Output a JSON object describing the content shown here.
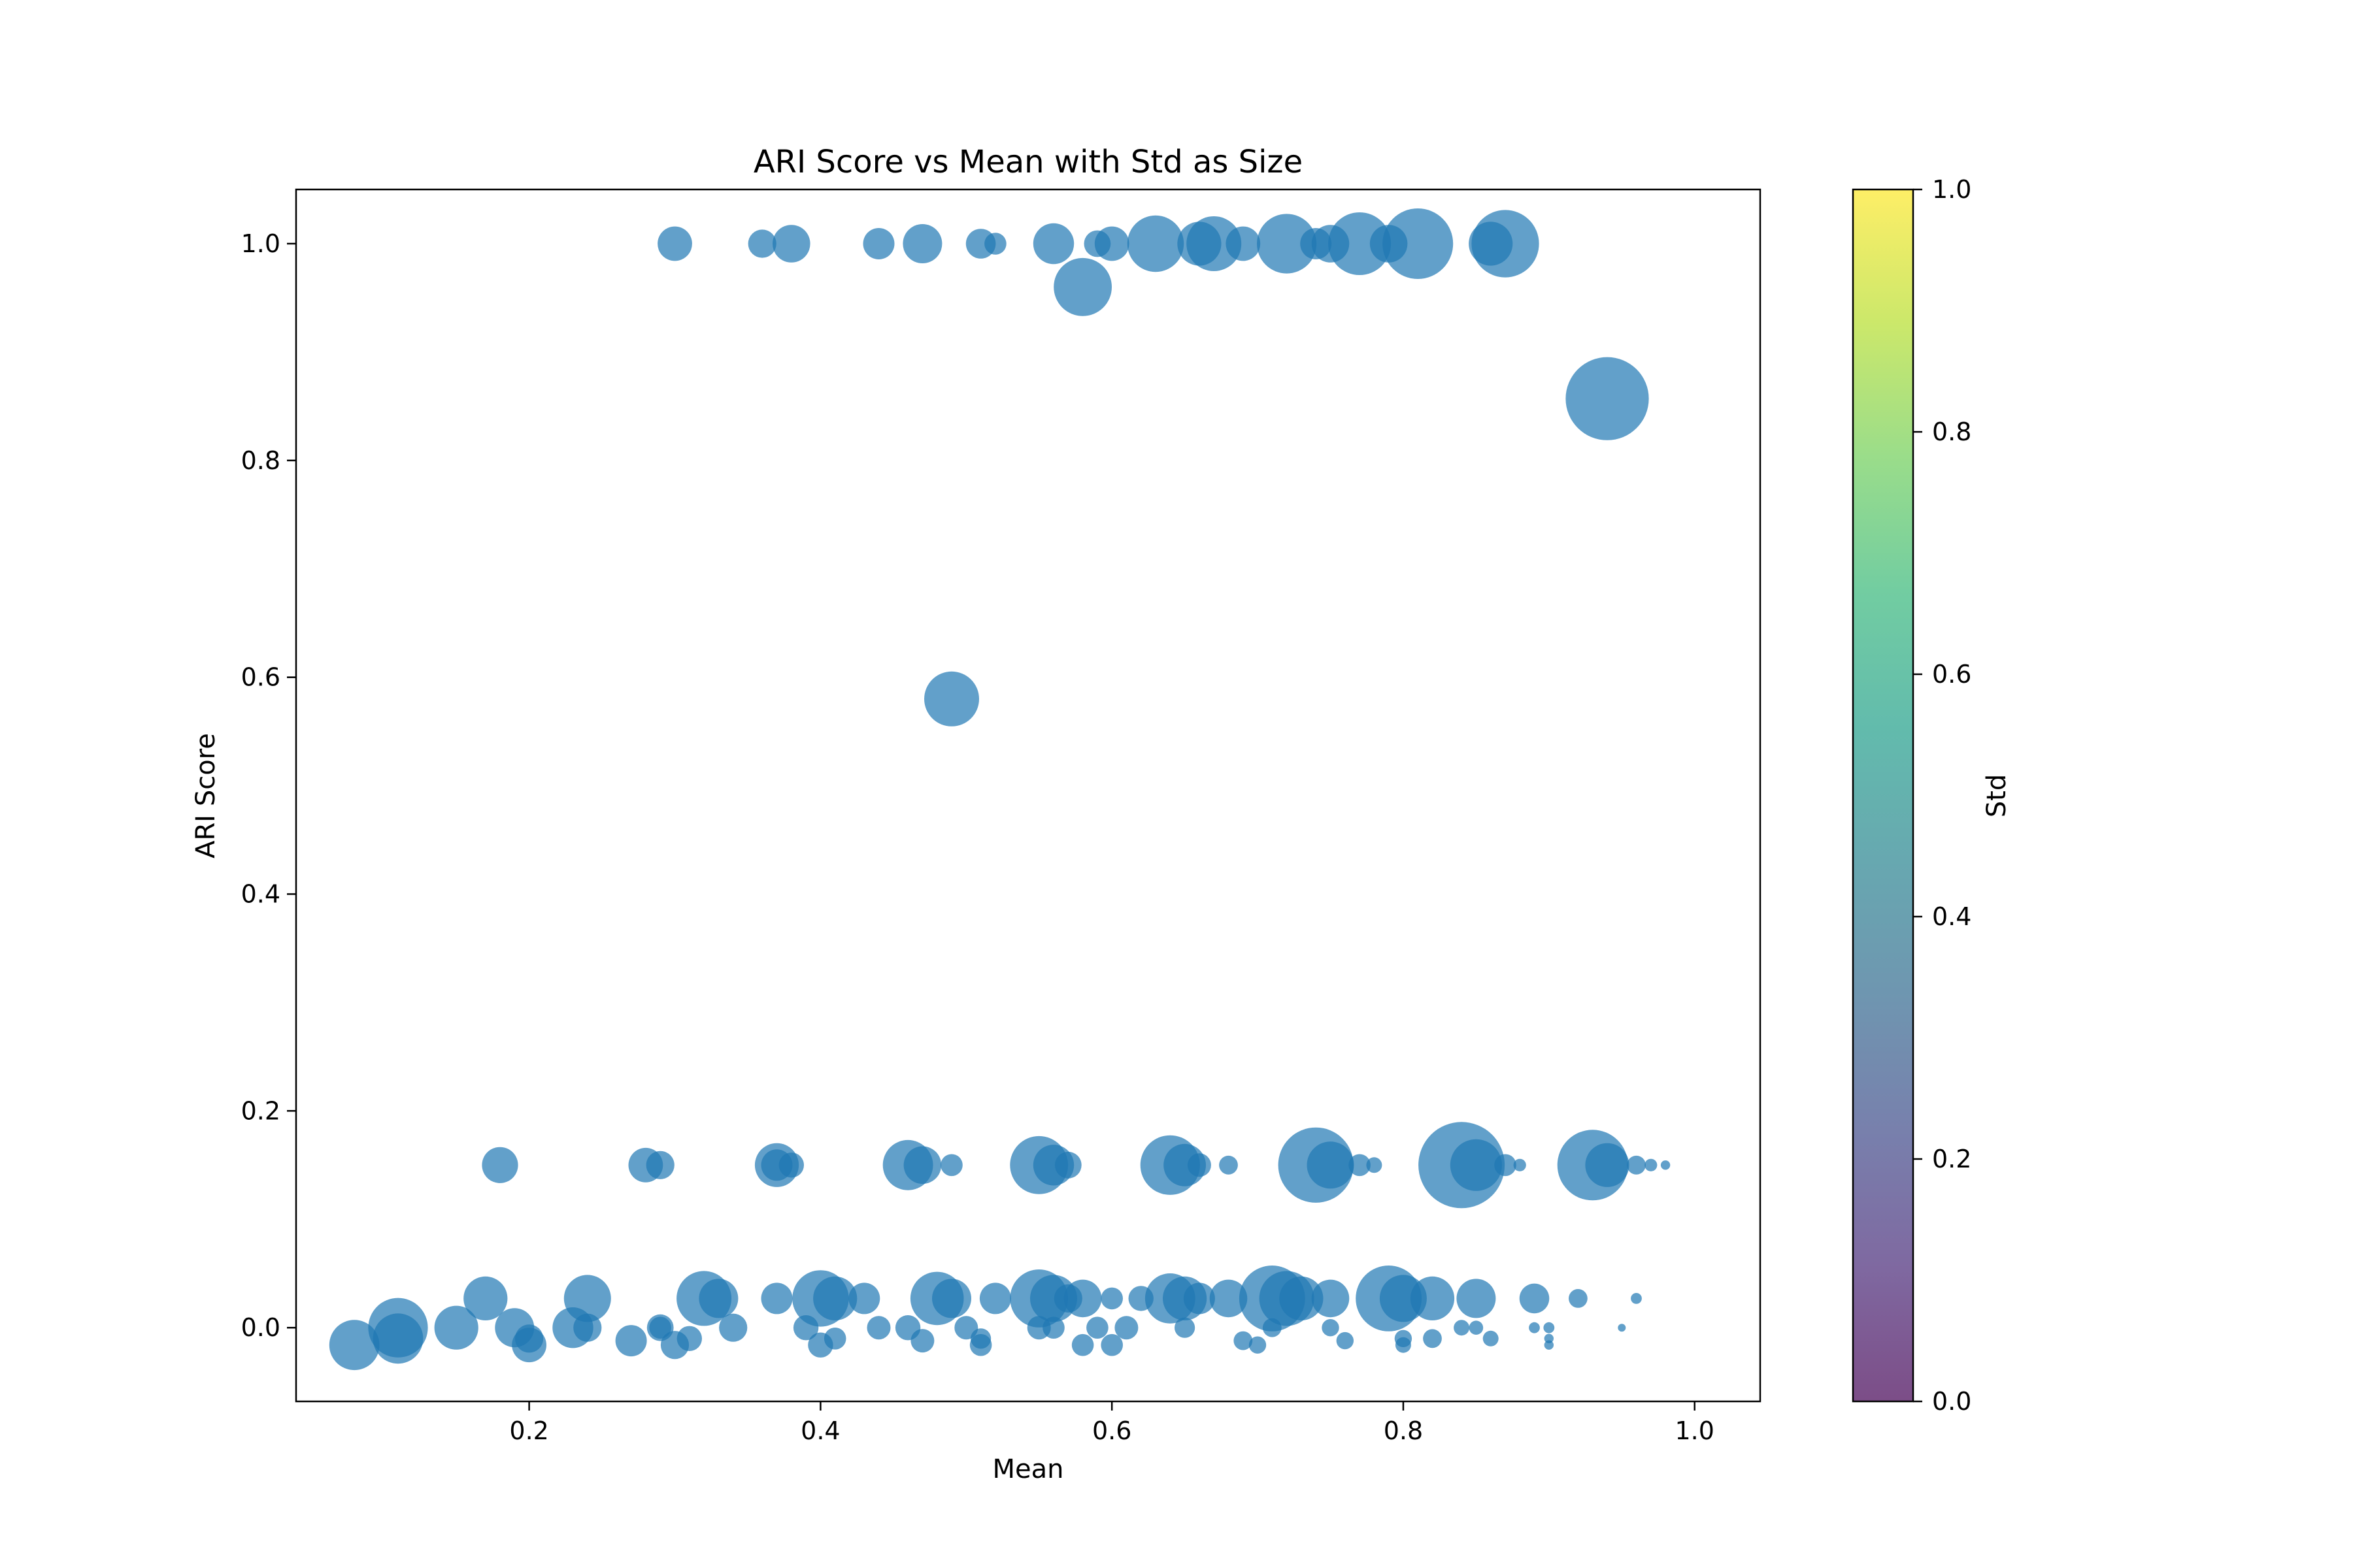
{
  "chart_data": {
    "type": "scatter",
    "title": "ARI Score vs Mean with Std as Size",
    "xlabel": "Mean",
    "ylabel": "ARI Score",
    "xlim": [
      0.04,
      1.045
    ],
    "ylim": [
      -0.068,
      1.05
    ],
    "xticks": [
      "0.2",
      "0.4",
      "0.6",
      "0.8",
      "1.0"
    ],
    "yticks": [
      "0.0",
      "0.2",
      "0.4",
      "0.6",
      "0.8",
      "1.0"
    ],
    "grid": false,
    "marker_color": "#1f77b4",
    "marker_alpha": 0.7,
    "colorbar": {
      "label": "Std",
      "range": [
        0,
        1
      ],
      "ticks": [
        "0.0",
        "0.2",
        "0.4",
        "0.6",
        "0.8",
        "1.0"
      ],
      "colormap": "viridis",
      "stops": [
        "#440154",
        "#482878",
        "#3e4989",
        "#31688e",
        "#26828e",
        "#1f9e89",
        "#35b779",
        "#6ece58",
        "#b5de2b",
        "#fde725"
      ]
    },
    "points": [
      [
        0.3,
        1.0,
        0.22
      ],
      [
        0.36,
        1.0,
        0.18
      ],
      [
        0.38,
        1.0,
        0.24
      ],
      [
        0.44,
        1.0,
        0.2
      ],
      [
        0.47,
        1.0,
        0.25
      ],
      [
        0.51,
        1.0,
        0.19
      ],
      [
        0.52,
        1.0,
        0.14
      ],
      [
        0.56,
        1.0,
        0.26
      ],
      [
        0.59,
        1.0,
        0.17
      ],
      [
        0.6,
        1.0,
        0.22
      ],
      [
        0.63,
        1.0,
        0.36
      ],
      [
        0.66,
        1.0,
        0.28
      ],
      [
        0.67,
        1.0,
        0.35
      ],
      [
        0.69,
        1.0,
        0.22
      ],
      [
        0.72,
        1.0,
        0.38
      ],
      [
        0.74,
        1.0,
        0.2
      ],
      [
        0.75,
        1.0,
        0.24
      ],
      [
        0.77,
        1.0,
        0.4
      ],
      [
        0.79,
        1.0,
        0.24
      ],
      [
        0.81,
        1.0,
        0.45
      ],
      [
        0.86,
        1.0,
        0.28
      ],
      [
        0.87,
        1.0,
        0.43
      ],
      [
        0.58,
        0.96,
        0.37
      ],
      [
        0.94,
        0.857,
        0.53
      ],
      [
        0.49,
        0.58,
        0.35
      ],
      [
        0.18,
        0.15,
        0.23
      ],
      [
        0.28,
        0.15,
        0.22
      ],
      [
        0.29,
        0.15,
        0.18
      ],
      [
        0.37,
        0.15,
        0.28
      ],
      [
        0.37,
        0.15,
        0.2
      ],
      [
        0.38,
        0.15,
        0.16
      ],
      [
        0.46,
        0.15,
        0.32
      ],
      [
        0.47,
        0.15,
        0.24
      ],
      [
        0.49,
        0.15,
        0.14
      ],
      [
        0.55,
        0.15,
        0.37
      ],
      [
        0.56,
        0.15,
        0.26
      ],
      [
        0.57,
        0.15,
        0.17
      ],
      [
        0.64,
        0.15,
        0.38
      ],
      [
        0.65,
        0.15,
        0.27
      ],
      [
        0.66,
        0.15,
        0.15
      ],
      [
        0.68,
        0.15,
        0.12
      ],
      [
        0.74,
        0.15,
        0.48
      ],
      [
        0.75,
        0.15,
        0.3
      ],
      [
        0.77,
        0.15,
        0.14
      ],
      [
        0.78,
        0.15,
        0.1
      ],
      [
        0.84,
        0.15,
        0.55
      ],
      [
        0.85,
        0.15,
        0.33
      ],
      [
        0.87,
        0.15,
        0.14
      ],
      [
        0.88,
        0.15,
        0.08
      ],
      [
        0.93,
        0.15,
        0.45
      ],
      [
        0.94,
        0.15,
        0.28
      ],
      [
        0.96,
        0.15,
        0.12
      ],
      [
        0.97,
        0.15,
        0.08
      ],
      [
        0.98,
        0.15,
        0.06
      ],
      [
        0.17,
        0.027,
        0.28
      ],
      [
        0.24,
        0.027,
        0.3
      ],
      [
        0.32,
        0.027,
        0.35
      ],
      [
        0.33,
        0.027,
        0.25
      ],
      [
        0.37,
        0.027,
        0.2
      ],
      [
        0.4,
        0.027,
        0.36
      ],
      [
        0.41,
        0.027,
        0.28
      ],
      [
        0.43,
        0.027,
        0.2
      ],
      [
        0.48,
        0.027,
        0.34
      ],
      [
        0.49,
        0.027,
        0.25
      ],
      [
        0.52,
        0.027,
        0.2
      ],
      [
        0.55,
        0.027,
        0.37
      ],
      [
        0.56,
        0.027,
        0.3
      ],
      [
        0.57,
        0.027,
        0.18
      ],
      [
        0.58,
        0.027,
        0.24
      ],
      [
        0.6,
        0.027,
        0.14
      ],
      [
        0.62,
        0.027,
        0.16
      ],
      [
        0.64,
        0.027,
        0.32
      ],
      [
        0.65,
        0.027,
        0.28
      ],
      [
        0.66,
        0.027,
        0.2
      ],
      [
        0.68,
        0.027,
        0.24
      ],
      [
        0.71,
        0.027,
        0.42
      ],
      [
        0.72,
        0.027,
        0.35
      ],
      [
        0.73,
        0.027,
        0.28
      ],
      [
        0.75,
        0.027,
        0.24
      ],
      [
        0.79,
        0.027,
        0.42
      ],
      [
        0.8,
        0.027,
        0.3
      ],
      [
        0.82,
        0.027,
        0.28
      ],
      [
        0.85,
        0.027,
        0.25
      ],
      [
        0.89,
        0.027,
        0.19
      ],
      [
        0.92,
        0.027,
        0.12
      ],
      [
        0.96,
        0.027,
        0.07
      ],
      [
        0.08,
        -0.016,
        0.32
      ],
      [
        0.11,
        0.0,
        0.38
      ],
      [
        0.11,
        -0.01,
        0.32
      ],
      [
        0.15,
        0.0,
        0.28
      ],
      [
        0.19,
        0.0,
        0.25
      ],
      [
        0.2,
        -0.016,
        0.22
      ],
      [
        0.2,
        -0.01,
        0.18
      ],
      [
        0.23,
        0.0,
        0.26
      ],
      [
        0.24,
        0.0,
        0.18
      ],
      [
        0.27,
        -0.012,
        0.2
      ],
      [
        0.29,
        0.0,
        0.17
      ],
      [
        0.29,
        0.0,
        0.14
      ],
      [
        0.3,
        -0.016,
        0.18
      ],
      [
        0.31,
        -0.01,
        0.16
      ],
      [
        0.34,
        0.0,
        0.18
      ],
      [
        0.39,
        0.0,
        0.16
      ],
      [
        0.4,
        -0.016,
        0.16
      ],
      [
        0.41,
        -0.01,
        0.14
      ],
      [
        0.44,
        0.0,
        0.15
      ],
      [
        0.46,
        0.0,
        0.16
      ],
      [
        0.47,
        -0.012,
        0.15
      ],
      [
        0.5,
        0.0,
        0.15
      ],
      [
        0.51,
        -0.016,
        0.14
      ],
      [
        0.51,
        -0.01,
        0.13
      ],
      [
        0.55,
        0.0,
        0.15
      ],
      [
        0.56,
        0.0,
        0.14
      ],
      [
        0.58,
        -0.016,
        0.14
      ],
      [
        0.59,
        0.0,
        0.14
      ],
      [
        0.6,
        -0.016,
        0.14
      ],
      [
        0.61,
        0.0,
        0.15
      ],
      [
        0.65,
        0.0,
        0.13
      ],
      [
        0.69,
        -0.012,
        0.12
      ],
      [
        0.7,
        -0.016,
        0.11
      ],
      [
        0.71,
        0.0,
        0.12
      ],
      [
        0.75,
        0.0,
        0.11
      ],
      [
        0.76,
        -0.012,
        0.11
      ],
      [
        0.8,
        -0.016,
        0.1
      ],
      [
        0.8,
        -0.01,
        0.11
      ],
      [
        0.82,
        -0.01,
        0.12
      ],
      [
        0.84,
        0.0,
        0.1
      ],
      [
        0.85,
        0.0,
        0.09
      ],
      [
        0.86,
        -0.01,
        0.1
      ],
      [
        0.89,
        0.0,
        0.07
      ],
      [
        0.9,
        0.0,
        0.07
      ],
      [
        0.9,
        -0.01,
        0.06
      ],
      [
        0.9,
        -0.016,
        0.06
      ],
      [
        0.95,
        0.0,
        0.05
      ]
    ]
  }
}
